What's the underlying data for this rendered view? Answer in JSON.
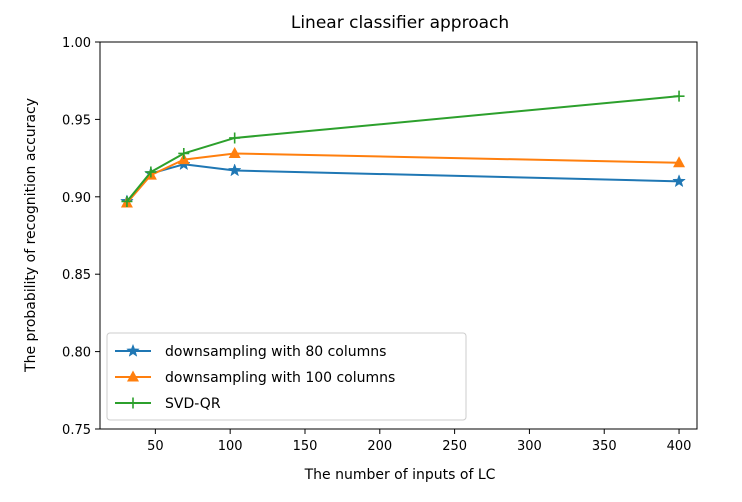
{
  "chart_data": {
    "type": "line",
    "title": "Linear classifier approach",
    "xlabel": "The number of inputs of LC",
    "ylabel": "The probability of recognition accuracy",
    "xlim": [
      13,
      412
    ],
    "ylim": [
      0.75,
      1.0
    ],
    "x_ticks": [
      50,
      100,
      150,
      200,
      250,
      300,
      350,
      400
    ],
    "y_ticks": [
      0.75,
      0.8,
      0.85,
      0.9,
      0.95,
      1.0
    ],
    "x_tick_labels": [
      "50",
      "100",
      "150",
      "200",
      "250",
      "300",
      "350",
      "400"
    ],
    "y_tick_labels": [
      "0.75",
      "0.80",
      "0.85",
      "0.90",
      "0.95",
      "1.00"
    ],
    "grid": false,
    "legend_position": "bottom-left",
    "series": [
      {
        "name": "downsampling with 80 columns",
        "color": "#1f77b4",
        "marker": "star",
        "x": [
          31,
          47,
          69,
          103,
          400
        ],
        "y": [
          0.897,
          0.915,
          0.921,
          0.917,
          0.91
        ]
      },
      {
        "name": "downsampling with 100 columns",
        "color": "#ff7f0e",
        "marker": "triangle",
        "x": [
          31,
          47,
          69,
          103,
          400
        ],
        "y": [
          0.896,
          0.914,
          0.924,
          0.928,
          0.922
        ]
      },
      {
        "name": "SVD-QR",
        "color": "#2ca02c",
        "marker": "plus",
        "x": [
          31,
          47,
          69,
          103,
          400
        ],
        "y": [
          0.897,
          0.916,
          0.928,
          0.938,
          0.965
        ]
      }
    ]
  }
}
